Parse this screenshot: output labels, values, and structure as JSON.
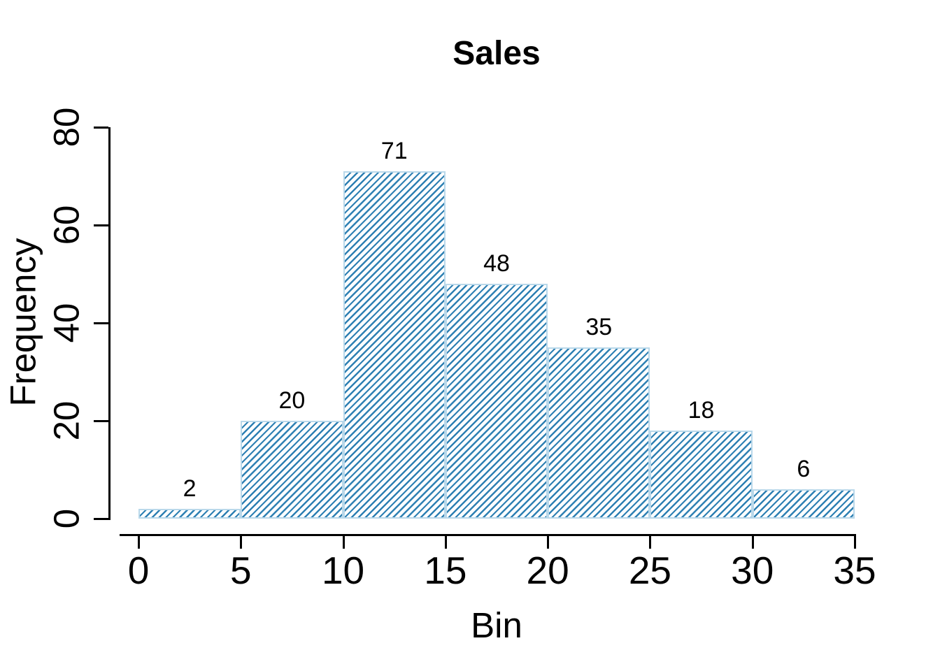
{
  "chart_data": {
    "type": "bar",
    "subtype": "histogram",
    "title": "Sales",
    "xlabel": "Bin",
    "ylabel": "Frequency",
    "bin_edges": [
      0,
      5,
      10,
      15,
      20,
      25,
      30,
      35
    ],
    "bin_width": 5,
    "values": [
      2,
      20,
      71,
      48,
      35,
      18,
      6
    ],
    "bar_value_labels": [
      "2",
      "20",
      "71",
      "48",
      "35",
      "18",
      "6"
    ],
    "x_ticks": [
      0,
      5,
      10,
      15,
      20,
      25,
      30,
      35
    ],
    "x_tick_labels": [
      "0",
      "5",
      "10",
      "15",
      "20",
      "25",
      "30",
      "35"
    ],
    "y_ticks": [
      0,
      20,
      40,
      60,
      80
    ],
    "y_tick_labels": [
      "0",
      "20",
      "40",
      "60",
      "80"
    ],
    "xlim": [
      0,
      35
    ],
    "ylim": [
      0,
      80
    ],
    "grid": false,
    "legend": false,
    "hatch_pattern": "diagonal-lines-45deg",
    "hatch_color": "#2e80b3",
    "bar_border_color": "#b9d8ea",
    "axis_color": "#000000",
    "text_color": "#000000",
    "background_color": "#ffffff"
  }
}
